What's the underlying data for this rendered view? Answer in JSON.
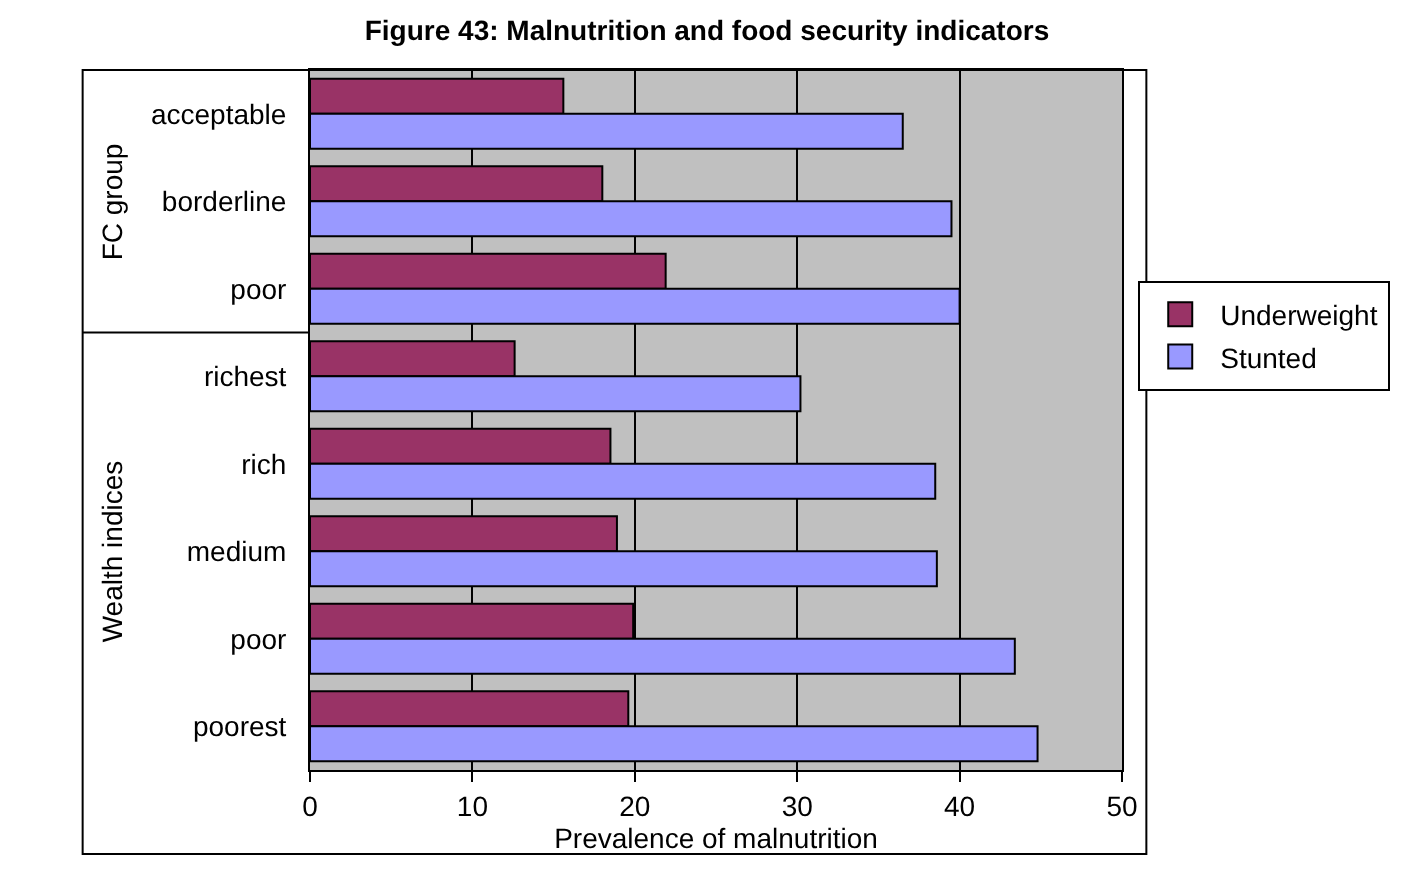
{
  "chart_data": {
    "type": "bar",
    "orientation": "horizontal",
    "title": "Figure 43: Malnutrition and food security indicators",
    "xlabel": "Prevalence of malnutrition",
    "categories": [
      "acceptable",
      "borderline",
      "poor",
      "richest",
      "rich",
      "medium",
      "poor",
      "poorest"
    ],
    "series": [
      {
        "name": "Underweight",
        "color": "#993366",
        "values": [
          15.6,
          18.0,
          21.9,
          12.6,
          18.5,
          18.9,
          19.9,
          19.6
        ]
      },
      {
        "name": "Stunted",
        "color": "#9999ff",
        "values": [
          36.5,
          39.5,
          40.0,
          30.2,
          38.5,
          38.6,
          43.4,
          44.8
        ]
      }
    ],
    "annotations": [
      "FC group",
      "Wealth indices"
    ],
    "xlim": [
      0,
      50
    ],
    "xticks": [
      0,
      10,
      20,
      30,
      40,
      50
    ],
    "grid": "x",
    "legend": "right"
  }
}
